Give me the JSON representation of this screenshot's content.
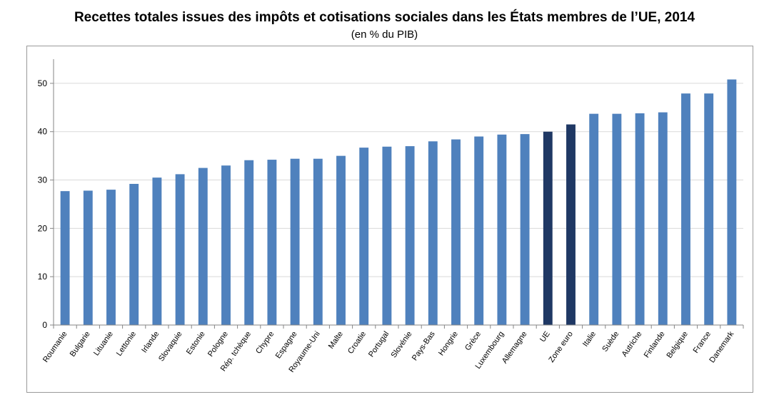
{
  "title": "Recettes totales issues des impôts et cotisations sociales dans les États membres de l’UE, 2014",
  "subtitle": "(en % du PIB)",
  "colors": {
    "bar": "#4f81bd",
    "highlight": "#1f3864",
    "grid": "#d9d9d9",
    "axis": "#868686"
  },
  "chart_data": {
    "type": "bar",
    "title": "Recettes totales issues des impôts et cotisations sociales dans les États membres de l’UE, 2014",
    "subtitle": "(en % du PIB)",
    "xlabel": "",
    "ylabel": "",
    "ylim": [
      0,
      55
    ],
    "yticks": [
      0,
      10,
      20,
      30,
      40,
      50
    ],
    "grid": true,
    "legend": "none",
    "categories": [
      "Roumanie",
      "Bulgarie",
      "Lituanie",
      "Lettonie",
      "Irlande",
      "Slovaquie",
      "Estonie",
      "Pologne",
      "Rép. tchèque",
      "Chypre",
      "Espagne",
      "Royaume-Uni",
      "Malte",
      "Croatie",
      "Portugal",
      "Slovénie",
      "Pays-Bas",
      "Hongrie",
      "Grèce",
      "Luxembourg",
      "Allemagne",
      "UE",
      "Zone euro",
      "Italie",
      "Suède",
      "Autriche",
      "Finlande",
      "Belgique",
      "France",
      "Danemark"
    ],
    "values": [
      27.7,
      27.8,
      28.0,
      29.2,
      30.5,
      31.2,
      32.5,
      33.0,
      34.1,
      34.2,
      34.4,
      34.4,
      35.0,
      36.7,
      36.9,
      37.0,
      38.0,
      38.4,
      39.0,
      39.4,
      39.5,
      40.0,
      41.5,
      43.7,
      43.7,
      43.8,
      44.0,
      47.9,
      47.9,
      50.8
    ],
    "highlighted": [
      "UE",
      "Zone euro"
    ]
  }
}
